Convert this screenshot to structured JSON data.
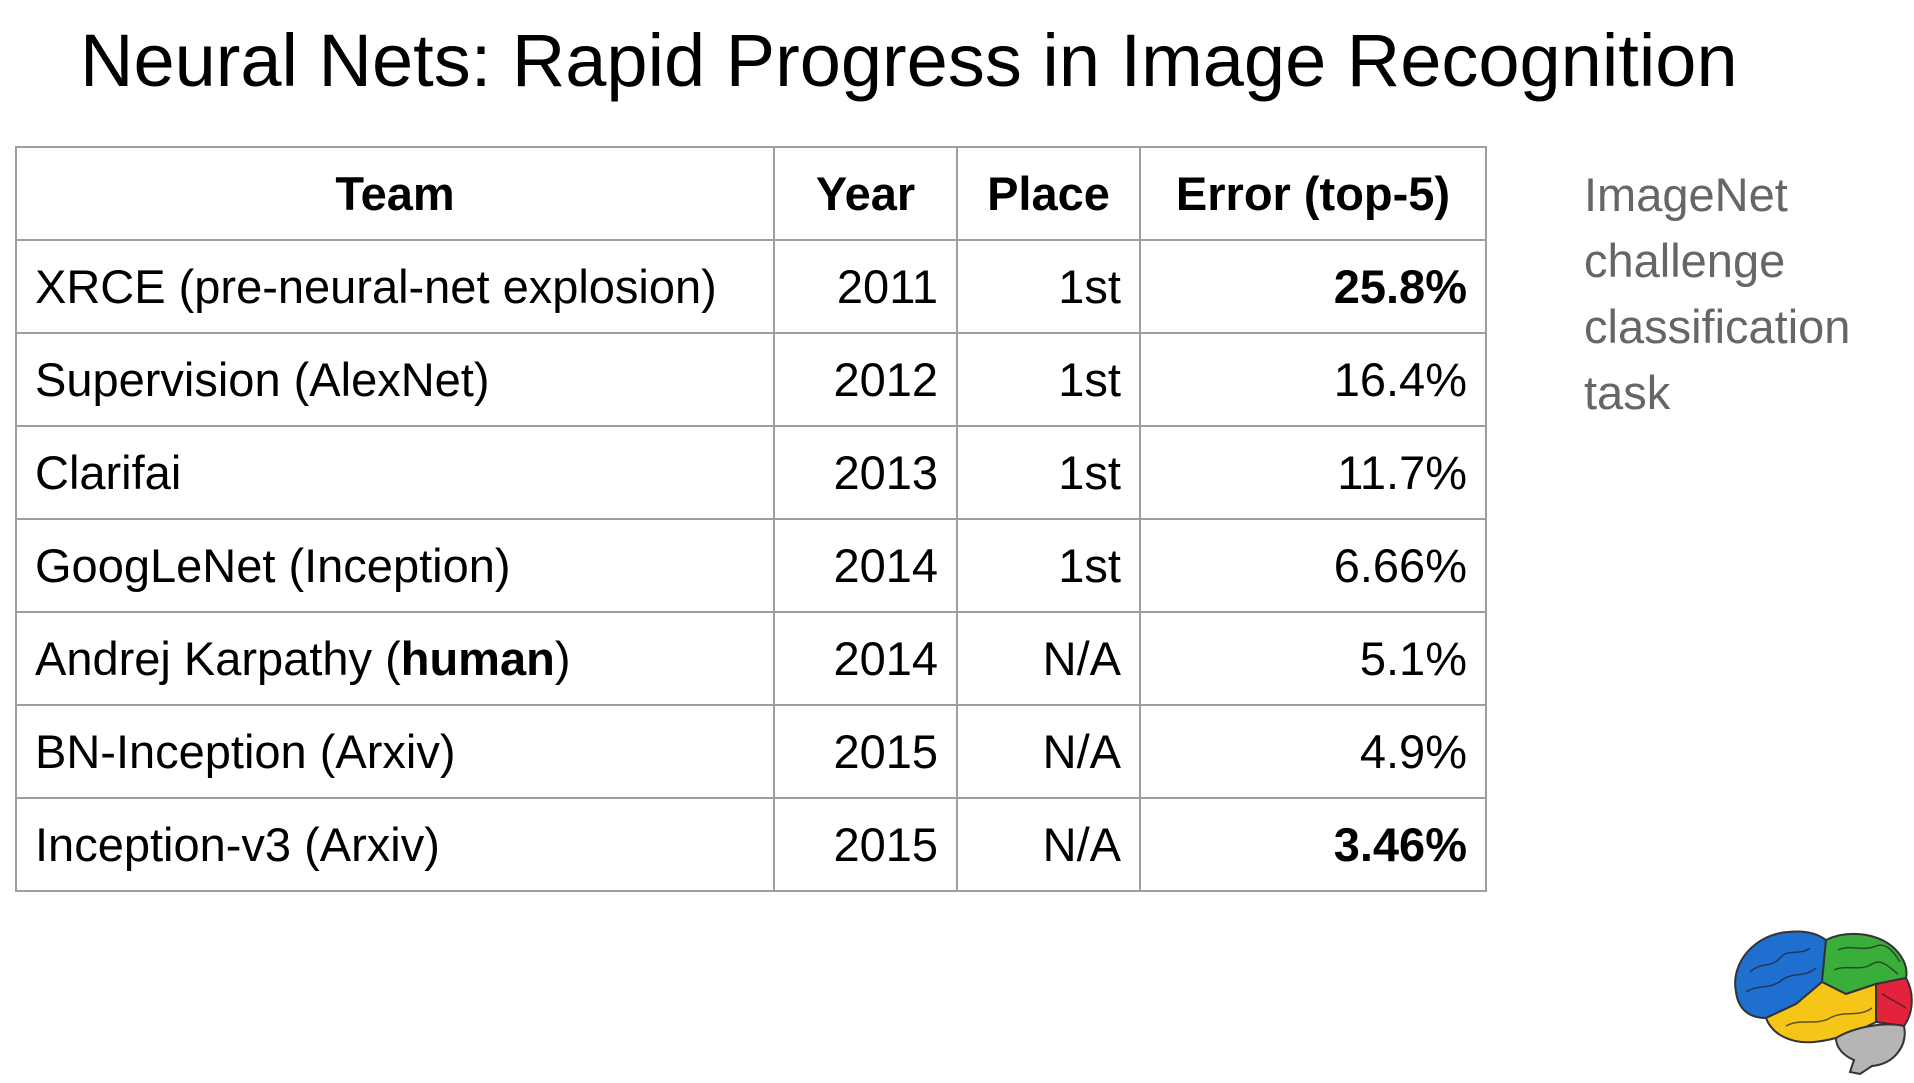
{
  "slide": {
    "title": "Neural Nets: Rapid Progress in Image Recognition",
    "side_note": "ImageNet challenge classification task"
  },
  "table": {
    "headers": {
      "team": "Team",
      "year": "Year",
      "place": "Place",
      "error": "Error (top-5)"
    },
    "rows": [
      {
        "team": "XRCE (pre-neural-net explosion)",
        "year": "2011",
        "place": "1st",
        "error": "25.8%"
      },
      {
        "team": "Supervision (AlexNet)",
        "year": "2012",
        "place": "1st",
        "error": "16.4%"
      },
      {
        "team": "Clarifai",
        "year": "2013",
        "place": "1st",
        "error": "11.7%"
      },
      {
        "team": "GoogLeNet (Inception)",
        "year": "2014",
        "place": "1st",
        "error": "6.66%"
      },
      {
        "team": "Andrej Karpathy (",
        "team_bold": "human",
        "team_suffix": ")",
        "year": "2014",
        "place": "N/A",
        "error": "5.1%"
      },
      {
        "team": "BN-Inception (Arxiv)",
        "year": "2015",
        "place": "N/A",
        "error": "4.9%"
      },
      {
        "team": "Inception-v3 (Arxiv)",
        "year": "2015",
        "place": "N/A",
        "error": "3.46%"
      }
    ]
  },
  "colors": {
    "border": "#9e9e9e",
    "side_note": "#666666",
    "brain_blue": "#1f6fd1",
    "brain_green": "#3aae3a",
    "brain_yellow": "#f5c518",
    "brain_red": "#e3233c",
    "brain_gray": "#b5b5b5"
  },
  "icons": {
    "logo": "brain-icon"
  }
}
